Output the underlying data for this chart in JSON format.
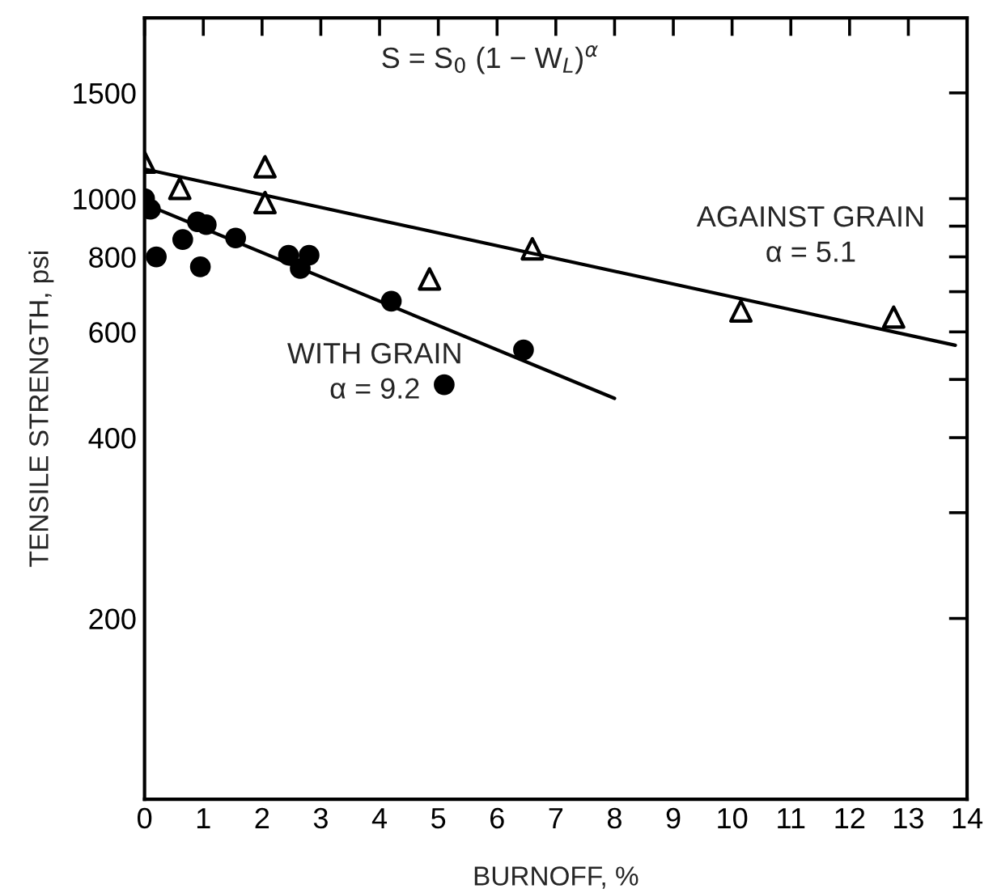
{
  "chart_data": {
    "type": "scatter",
    "xlabel": "BURNOFF, %",
    "ylabel": "TENSILE STRENGTH, psi",
    "log": "y",
    "xlim": [
      0,
      14
    ],
    "xticks": [
      0,
      1,
      2,
      3,
      4,
      5,
      6,
      7,
      8,
      9,
      10,
      11,
      12,
      13,
      14
    ],
    "ylim": [
      100,
      2000
    ],
    "yticks": [
      200,
      {
        "value": 300,
        "label": null
      },
      400,
      {
        "value": 500,
        "label": null
      },
      600,
      {
        "value": 700,
        "label": null
      },
      800,
      {
        "value": 900,
        "label": null
      },
      1000,
      1500
    ],
    "grid": false,
    "legend": false,
    "series": [
      {
        "color": "#000000",
        "marker": "circle",
        "x": [
          0,
          0.1,
          0.2,
          0.65,
          0.95,
          0.9,
          1.05,
          1.55,
          2.45,
          2.65,
          2.8,
          4.2,
          6.45,
          5.1
        ],
        "values": [
          1000,
          960,
          800,
          855,
          770,
          915,
          905,
          860,
          805,
          765,
          805,
          675,
          560,
          490
        ]
      },
      {
        "color": "#000000",
        "marker": "triangle",
        "x": [
          0,
          0.6,
          2.05,
          2.05,
          4.85,
          6.6,
          10.15,
          12.75
        ],
        "values": [
          1150,
          1040,
          1130,
          985,
          735,
          825,
          650,
          635
        ]
      },
      {
        "type": "line",
        "color": "#000000",
        "marker": "none",
        "line_style": "solid",
        "x": [
          0,
          13.8
        ],
        "values": [
          1120,
          570
        ]
      },
      {
        "type": "line",
        "color": "#000000",
        "marker": "none",
        "line_style": "solid",
        "x": [
          0,
          8.0
        ],
        "values": [
          980,
          465
        ]
      }
    ],
    "annotations": [
      "S = S$_{0}$ (1 − W$_{L}$)$^{α}$",
      "AGAINST GRAIN",
      "α = 5.1",
      "WITH GRAIN",
      "α = 9.2"
    ]
  }
}
